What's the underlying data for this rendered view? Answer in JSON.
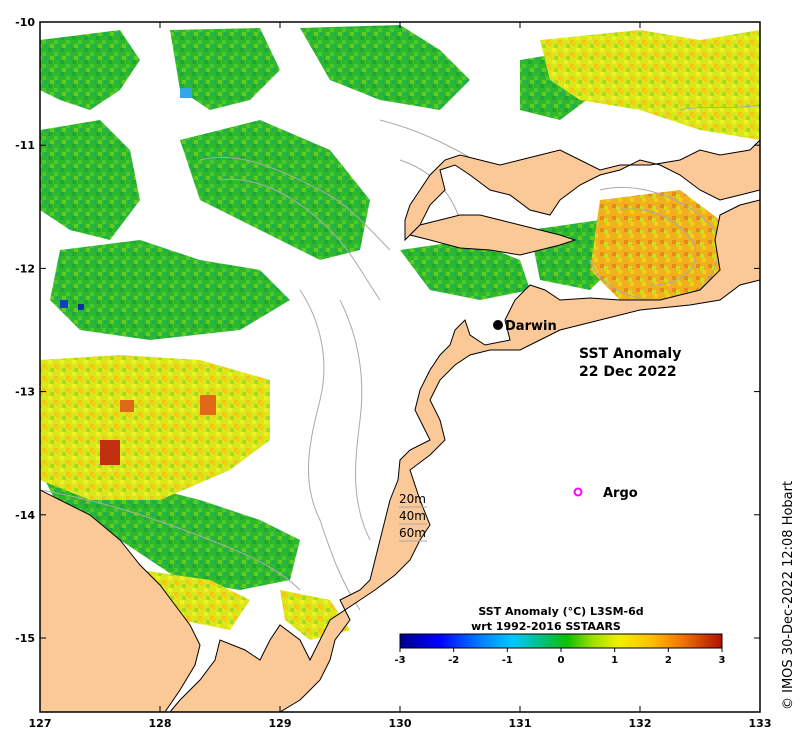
{
  "map": {
    "title_line1": "SST Anomaly",
    "title_line2": "22 Dec 2022",
    "credit": "© IMOS 30-Dec-2022 12:08 Hobart",
    "lon_ticks": [
      "127",
      "128",
      "129",
      "130",
      "131",
      "132",
      "133"
    ],
    "lat_ticks": [
      "-10",
      "-11",
      "-12",
      "-13",
      "-14",
      "-15"
    ],
    "places": {
      "darwin": "Darwin",
      "argo": "Argo"
    },
    "depth_legend": [
      "20m",
      "40m",
      "60m"
    ],
    "colorbar": {
      "title_line1": "SST Anomaly (°C) L3SM-6d",
      "title_line2": "wrt 1992-2016 SSTAARS",
      "ticks": [
        "-3",
        "-2",
        "-1",
        "0",
        "1",
        "2",
        "3"
      ],
      "range": [
        -3,
        3
      ]
    },
    "colors": {
      "land": "#FBC898",
      "ocean_nodata": "#ffffff",
      "contour": "#a9a9a9",
      "argo_marker": "#ff00ff"
    }
  }
}
